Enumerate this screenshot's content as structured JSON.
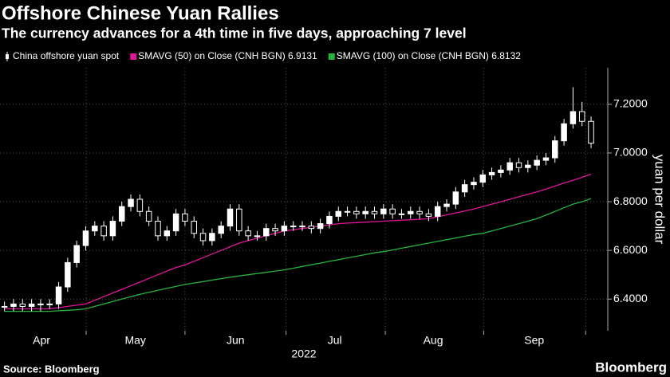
{
  "chart_data": {
    "type": "candlestick",
    "title": "Offshore Chinese Yuan Rallies",
    "subtitle": "The currency advances for a 4th time in five days, approaching 7 level",
    "ylabel": "yuan per dollar",
    "xlabel": "2022",
    "source": "Source: Bloomberg",
    "brand": "Bloomberg",
    "xlim": [
      -0.5,
      66.5
    ],
    "xticks": [
      {
        "value": 4.1,
        "label": "Apr"
      },
      {
        "value": 14.5,
        "label": "May"
      },
      {
        "value": 25.6,
        "label": "Jun"
      },
      {
        "value": 36.6,
        "label": "Jul"
      },
      {
        "value": 47.5,
        "label": "Aug"
      },
      {
        "value": 58.7,
        "label": "Sep"
      }
    ],
    "xgrid": [
      9.05,
      20,
      31.2,
      42.2,
      53.1,
      64.4
    ],
    "ylim": [
      6.27,
      7.35
    ],
    "yticks": [
      {
        "value": 6.4,
        "label": "6.4000"
      },
      {
        "value": 6.6,
        "label": "6.6000"
      },
      {
        "value": 6.8,
        "label": "6.8000"
      },
      {
        "value": 7.0,
        "label": "7.0000"
      },
      {
        "value": 7.2,
        "label": "7.2000"
      }
    ],
    "grid": true,
    "series": [
      {
        "name": "China offshore yuan spot",
        "color": "#ffffff",
        "open": [
          6.37,
          6.37,
          6.38,
          6.37,
          6.38,
          6.38,
          6.38,
          6.45,
          6.55,
          6.62,
          6.68,
          6.7,
          6.66,
          6.72,
          6.78,
          6.81,
          6.76,
          6.72,
          6.66,
          6.68,
          6.75,
          6.72,
          6.67,
          6.64,
          6.67,
          6.7,
          6.77,
          6.68,
          6.66,
          6.66,
          6.69,
          6.68,
          6.7,
          6.7,
          6.7,
          6.69,
          6.71,
          6.74,
          6.76,
          6.76,
          6.75,
          6.76,
          6.75,
          6.77,
          6.75,
          6.75,
          6.76,
          6.75,
          6.74,
          6.78,
          6.79,
          6.84,
          6.87,
          6.88,
          6.91,
          6.92,
          6.93,
          6.96,
          6.94,
          6.95,
          6.97,
          6.98,
          7.05,
          7.12,
          7.17,
          7.13
        ],
        "high": [
          6.39,
          6.4,
          6.4,
          6.4,
          6.4,
          6.4,
          6.47,
          6.57,
          6.64,
          6.7,
          6.72,
          6.72,
          6.74,
          6.8,
          6.83,
          6.83,
          6.78,
          6.74,
          6.7,
          6.77,
          6.77,
          6.74,
          6.69,
          6.69,
          6.72,
          6.79,
          6.79,
          6.7,
          6.68,
          6.71,
          6.71,
          6.72,
          6.72,
          6.72,
          6.72,
          6.73,
          6.76,
          6.78,
          6.78,
          6.78,
          6.78,
          6.78,
          6.79,
          6.79,
          6.77,
          6.78,
          6.78,
          6.77,
          6.8,
          6.81,
          6.86,
          6.89,
          6.9,
          6.93,
          6.94,
          6.95,
          6.98,
          6.98,
          6.97,
          6.99,
          7.0,
          7.07,
          7.14,
          7.27,
          7.21,
          7.15
        ],
        "low": [
          6.35,
          6.35,
          6.35,
          6.35,
          6.35,
          6.36,
          6.36,
          6.43,
          6.53,
          6.6,
          6.66,
          6.64,
          6.64,
          6.7,
          6.76,
          6.74,
          6.7,
          6.64,
          6.64,
          6.66,
          6.7,
          6.65,
          6.62,
          6.62,
          6.65,
          6.68,
          6.66,
          6.64,
          6.64,
          6.64,
          6.66,
          6.66,
          6.68,
          6.68,
          6.67,
          6.67,
          6.69,
          6.72,
          6.74,
          6.73,
          6.73,
          6.73,
          6.73,
          6.73,
          6.73,
          6.73,
          6.73,
          6.72,
          6.72,
          6.76,
          6.77,
          6.82,
          6.85,
          6.86,
          6.89,
          6.9,
          6.91,
          6.92,
          6.92,
          6.93,
          6.95,
          6.96,
          7.03,
          7.1,
          7.11,
          7.02
        ],
        "close": [
          6.37,
          6.38,
          6.37,
          6.38,
          6.38,
          6.38,
          6.45,
          6.55,
          6.62,
          6.68,
          6.7,
          6.66,
          6.72,
          6.78,
          6.81,
          6.76,
          6.72,
          6.66,
          6.68,
          6.75,
          6.72,
          6.67,
          6.64,
          6.67,
          6.7,
          6.77,
          6.68,
          6.66,
          6.66,
          6.69,
          6.68,
          6.7,
          6.7,
          6.7,
          6.69,
          6.71,
          6.74,
          6.76,
          6.76,
          6.75,
          6.76,
          6.75,
          6.77,
          6.75,
          6.75,
          6.76,
          6.75,
          6.74,
          6.78,
          6.79,
          6.84,
          6.87,
          6.88,
          6.91,
          6.92,
          6.93,
          6.96,
          6.94,
          6.95,
          6.97,
          6.98,
          7.05,
          7.12,
          7.17,
          7.13,
          7.04
        ]
      },
      {
        "name": "SMAVG (50)  on Close (CNH BGN) 6.9131",
        "color": "#e0169a",
        "values": [
          6.36,
          6.36,
          6.36,
          6.36,
          6.36,
          6.36,
          6.365,
          6.37,
          6.375,
          6.38,
          6.395,
          6.41,
          6.425,
          6.44,
          6.455,
          6.47,
          6.485,
          6.5,
          6.515,
          6.53,
          6.54,
          6.555,
          6.57,
          6.585,
          6.6,
          6.615,
          6.63,
          6.64,
          6.65,
          6.66,
          6.67,
          6.68,
          6.685,
          6.69,
          6.695,
          6.7,
          6.705,
          6.71,
          6.712,
          6.714,
          6.716,
          6.718,
          6.72,
          6.722,
          6.724,
          6.726,
          6.728,
          6.73,
          6.738,
          6.746,
          6.754,
          6.762,
          6.77,
          6.78,
          6.79,
          6.8,
          6.81,
          6.82,
          6.83,
          6.84,
          6.852,
          6.864,
          6.876,
          6.888,
          6.9,
          6.913
        ]
      },
      {
        "name": "SMAVG (100)  on Close (CNH BGN) 6.8132",
        "color": "#25b33e",
        "values": [
          6.35,
          6.35,
          6.35,
          6.35,
          6.35,
          6.35,
          6.352,
          6.354,
          6.356,
          6.36,
          6.37,
          6.38,
          6.39,
          6.4,
          6.41,
          6.42,
          6.428,
          6.436,
          6.444,
          6.452,
          6.46,
          6.466,
          6.472,
          6.478,
          6.484,
          6.49,
          6.495,
          6.5,
          6.505,
          6.51,
          6.515,
          6.52,
          6.527,
          6.534,
          6.541,
          6.548,
          6.555,
          6.562,
          6.569,
          6.576,
          6.583,
          6.59,
          6.595,
          6.602,
          6.609,
          6.616,
          6.623,
          6.63,
          6.637,
          6.644,
          6.651,
          6.658,
          6.665,
          6.67,
          6.68,
          6.69,
          6.7,
          6.71,
          6.72,
          6.73,
          6.745,
          6.76,
          6.775,
          6.79,
          6.8,
          6.813
        ]
      }
    ]
  }
}
